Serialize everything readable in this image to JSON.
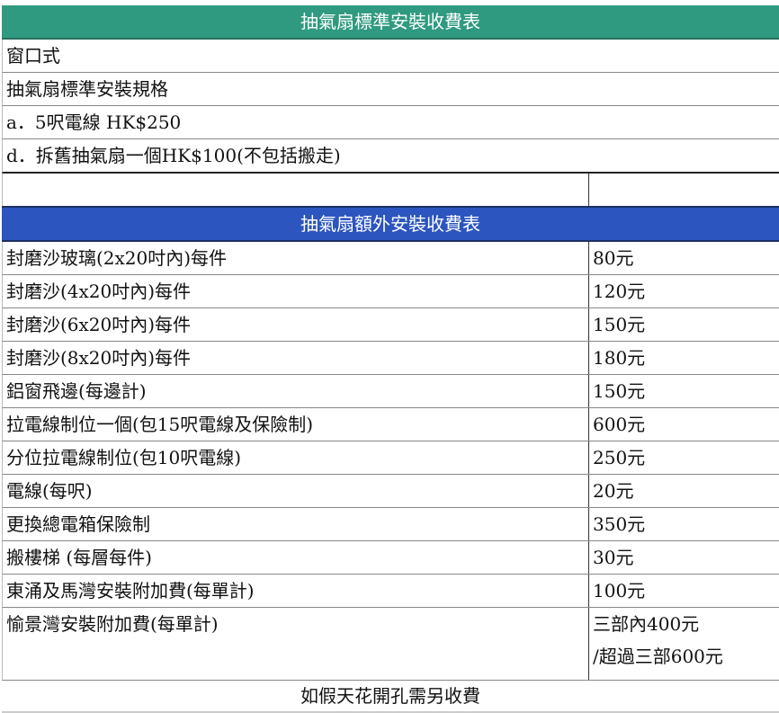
{
  "standard": {
    "title": "抽氣扇標準安裝收費表",
    "lines": [
      "窗口式",
      "抽氣扇標準安裝規格",
      "a．5呎電線 HK$250",
      "d．拆舊抽氣扇一個HK$100(不包括搬走)"
    ]
  },
  "extra": {
    "title": "抽氣扇額外安裝收費表",
    "rows": [
      {
        "item": "封磨沙玻璃(2x20吋內)每件",
        "price": "80元"
      },
      {
        "item": "封磨沙(4x20吋內)每件",
        "price": "120元"
      },
      {
        "item": "封磨沙(6x20吋內)每件",
        "price": "150元"
      },
      {
        "item": "封磨沙(8x20吋內)每件",
        "price": "180元"
      },
      {
        "item": "鋁窗飛邊(每邊計)",
        "price": "150元"
      },
      {
        "item": "拉電線制位一個(包15呎電線及保險制)",
        "price": "600元"
      },
      {
        "item": "分位拉電線制位(包10呎電線)",
        "price": "250元"
      },
      {
        "item": "電線(每呎)",
        "price": "20元"
      },
      {
        "item": "更換總電箱保險制",
        "price": "350元"
      },
      {
        "item": "搬樓梯 (每層每件)",
        "price": "30元"
      },
      {
        "item": "東涌及馬灣安裝附加費(每單計)",
        "price": "100元"
      }
    ],
    "last": {
      "item": "愉景灣安裝附加費(每單計)",
      "price_line1": "三部內400元",
      "price_line2": "/超過三部600元"
    }
  },
  "footer": "如假天花開孔需另收費",
  "colors": {
    "standard_header": "#2f9a7f",
    "extra_header": "#2c55bf"
  }
}
